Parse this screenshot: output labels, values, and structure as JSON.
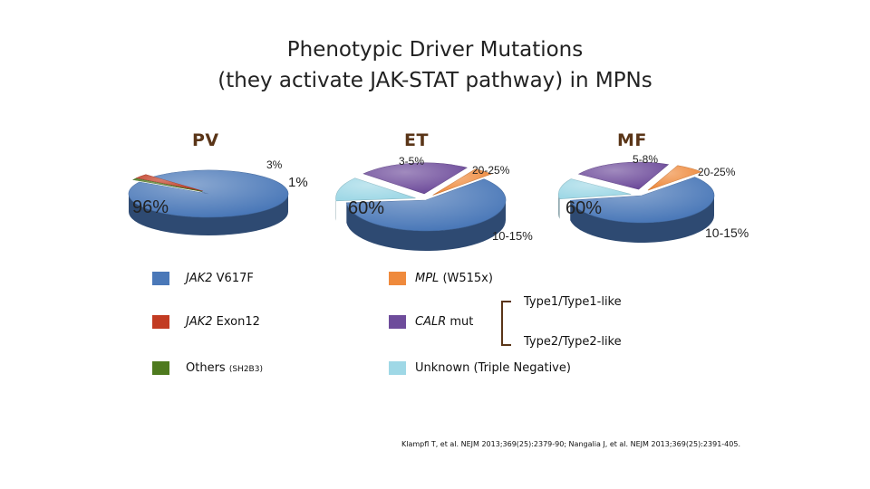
{
  "header": {
    "title_line1": "Phenotypic Driver Mutations",
    "title_line2": "(they activate JAK-STAT pathway) in MPNs"
  },
  "colors": {
    "jak2_v617f": "#4a78b8",
    "jak2_exon12": "#c23b22",
    "others": "#4e7a1e",
    "mpl": "#ef8a3c",
    "calr": "#6e4c9b",
    "triple_negative": "#9fd8e6"
  },
  "chart_data": [
    {
      "type": "pie",
      "title": "PV",
      "categories": [
        "JAK2 V617F",
        "JAK2 Exon12",
        "Others (SH2B3)"
      ],
      "values": [
        96,
        3,
        1
      ],
      "labels": [
        "96%",
        "3%",
        "1%"
      ]
    },
    {
      "type": "pie",
      "title": "ET",
      "categories": [
        "JAK2 V617F",
        "MPL (W515x)",
        "CALR mut",
        "Unknown (Triple Negative)"
      ],
      "values": [
        60,
        4,
        22.5,
        12.5
      ],
      "labels": [
        "60%",
        "3-5%",
        "20-25%",
        "10-15%"
      ]
    },
    {
      "type": "pie",
      "title": "MF",
      "categories": [
        "JAK2 V617F",
        "MPL (W515x)",
        "CALR mut",
        "Unknown (Triple Negative)"
      ],
      "values": [
        60,
        6.5,
        22.5,
        12.5
      ],
      "labels": [
        "60%",
        "5-8%",
        "20-25%",
        "10-15%"
      ]
    }
  ],
  "legend": {
    "jak2_v617f": {
      "gene": "JAK2",
      "rest": " V617F"
    },
    "jak2_exon12": {
      "gene": "JAK2",
      "rest": " Exon12"
    },
    "others": {
      "text": "Others ",
      "small": "(SH2B3)"
    },
    "mpl": {
      "gene": "MPL",
      "rest": " (W515x)"
    },
    "calr": {
      "gene": "CALR",
      "rest": " mut"
    },
    "triple_negative": {
      "text": "Unknown (Triple Negative)"
    },
    "type1": "Type1/Type1-like",
    "type2": "Type2/Type2-like"
  },
  "citation": "Klampfl T, et al. NEJM 2013;369(25):2379-90; Nangalia J, et al. NEJM 2013;369(25):2391-405."
}
